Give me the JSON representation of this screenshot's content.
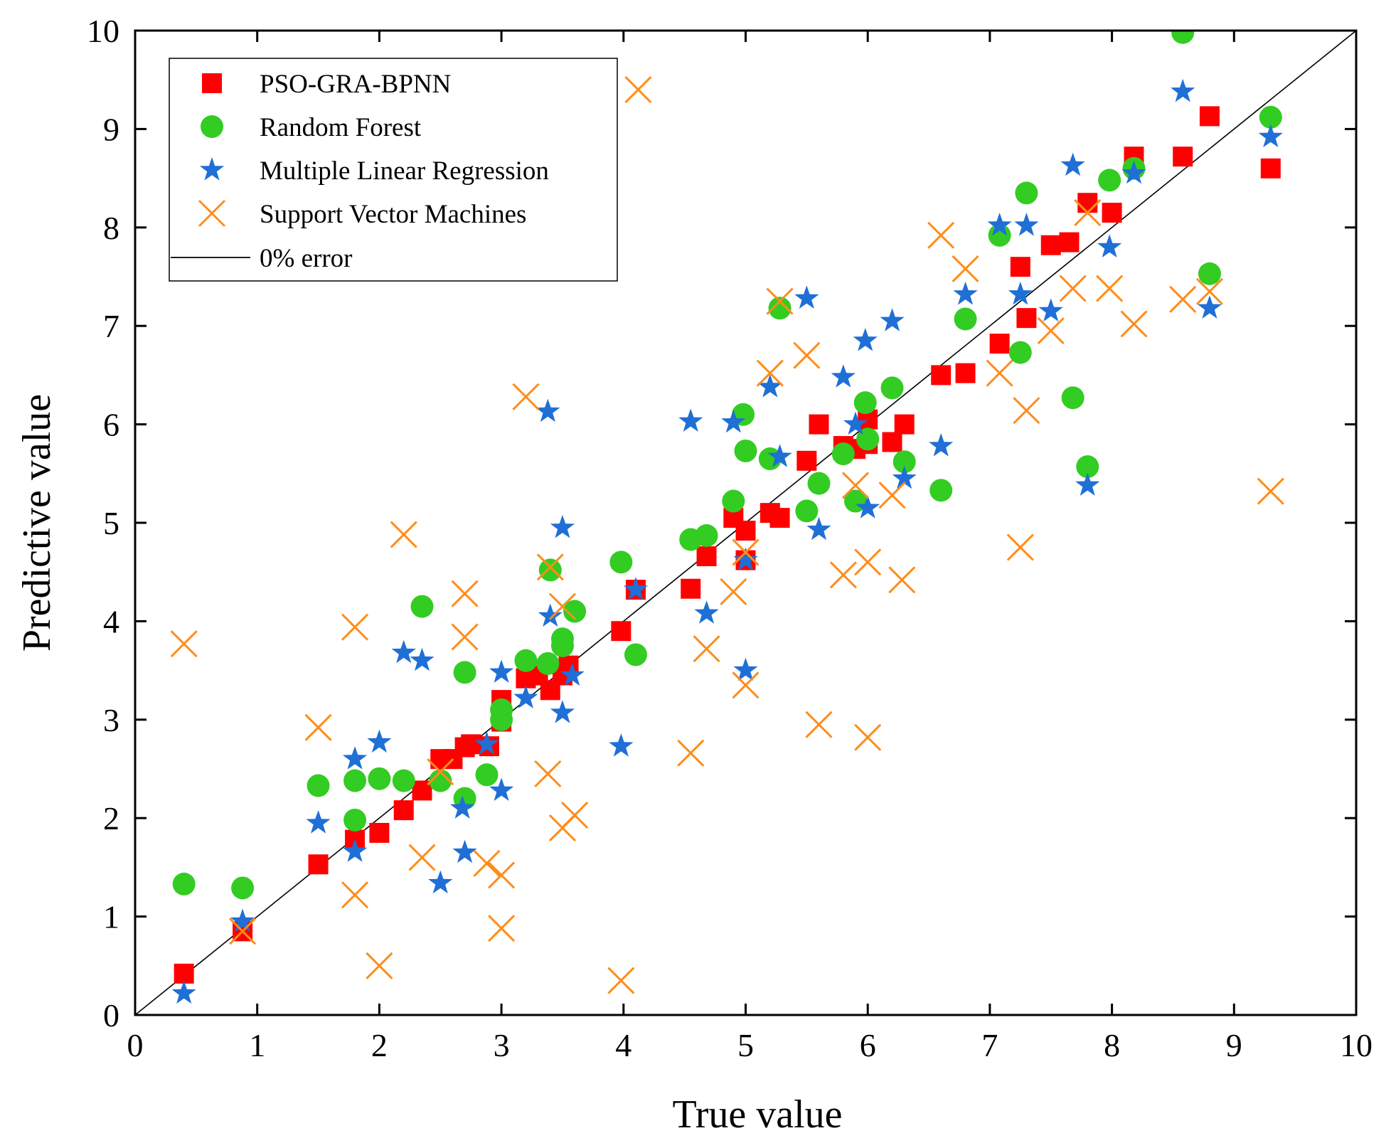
{
  "chart_data": {
    "type": "scatter",
    "title": "",
    "xlabel": "True value",
    "ylabel": "Predictive value",
    "xlim": [
      0,
      10
    ],
    "ylim": [
      0,
      10
    ],
    "xticks": [
      "0",
      "1",
      "2",
      "3",
      "4",
      "5",
      "6",
      "7",
      "8",
      "9",
      "10"
    ],
    "yticks": [
      "0",
      "1",
      "2",
      "3",
      "4",
      "5",
      "6",
      "7",
      "8",
      "9",
      "10"
    ],
    "grid": false,
    "legend_position": "top-left",
    "reference_line": {
      "name": "0% error",
      "x": [
        0,
        10
      ],
      "y": [
        0,
        10
      ],
      "color": "#000000"
    },
    "series": [
      {
        "name": "PSO-GRA-BPNN",
        "marker": "square",
        "color": "#ff0000",
        "points": [
          [
            0.4,
            0.42
          ],
          [
            0.88,
            0.85
          ],
          [
            1.5,
            1.53
          ],
          [
            1.8,
            1.78
          ],
          [
            2.0,
            1.85
          ],
          [
            2.2,
            2.08
          ],
          [
            2.35,
            2.28
          ],
          [
            2.5,
            2.6
          ],
          [
            2.6,
            2.6
          ],
          [
            2.7,
            2.72
          ],
          [
            2.75,
            2.75
          ],
          [
            2.9,
            2.73
          ],
          [
            3.0,
            3.2
          ],
          [
            3.0,
            2.98
          ],
          [
            3.2,
            3.42
          ],
          [
            3.3,
            3.45
          ],
          [
            3.4,
            3.3
          ],
          [
            3.5,
            3.45
          ],
          [
            3.55,
            3.55
          ],
          [
            3.98,
            3.9
          ],
          [
            4.1,
            4.32
          ],
          [
            4.55,
            4.33
          ],
          [
            4.68,
            4.66
          ],
          [
            4.9,
            5.05
          ],
          [
            5.0,
            4.92
          ],
          [
            5.0,
            4.62
          ],
          [
            5.2,
            5.1
          ],
          [
            5.28,
            5.05
          ],
          [
            5.5,
            5.63
          ],
          [
            5.6,
            6.0
          ],
          [
            5.8,
            5.78
          ],
          [
            5.9,
            5.75
          ],
          [
            6.0,
            5.8
          ],
          [
            6.0,
            6.05
          ],
          [
            6.2,
            5.82
          ],
          [
            6.3,
            6.0
          ],
          [
            6.6,
            6.5
          ],
          [
            6.8,
            6.52
          ],
          [
            7.08,
            6.82
          ],
          [
            7.25,
            7.6
          ],
          [
            7.3,
            7.08
          ],
          [
            7.5,
            7.82
          ],
          [
            7.65,
            7.85
          ],
          [
            7.8,
            8.25
          ],
          [
            8.0,
            8.15
          ],
          [
            8.18,
            8.72
          ],
          [
            8.58,
            8.72
          ],
          [
            8.8,
            9.13
          ],
          [
            9.3,
            8.6
          ]
        ]
      },
      {
        "name": "Random Forest",
        "marker": "circle",
        "color": "#33cc22",
        "points": [
          [
            0.4,
            1.33
          ],
          [
            0.88,
            1.29
          ],
          [
            1.5,
            2.33
          ],
          [
            1.8,
            2.38
          ],
          [
            1.8,
            1.98
          ],
          [
            2.0,
            2.4
          ],
          [
            2.2,
            2.38
          ],
          [
            2.35,
            4.15
          ],
          [
            2.5,
            2.38
          ],
          [
            2.7,
            3.48
          ],
          [
            2.7,
            2.2
          ],
          [
            2.88,
            2.44
          ],
          [
            3.0,
            3.0
          ],
          [
            3.0,
            3.1
          ],
          [
            3.2,
            3.6
          ],
          [
            3.38,
            3.57
          ],
          [
            3.4,
            4.52
          ],
          [
            3.5,
            3.82
          ],
          [
            3.5,
            3.75
          ],
          [
            3.6,
            4.1
          ],
          [
            3.98,
            4.6
          ],
          [
            4.1,
            3.66
          ],
          [
            4.55,
            4.83
          ],
          [
            4.68,
            4.87
          ],
          [
            4.9,
            5.22
          ],
          [
            4.98,
            6.1
          ],
          [
            5.0,
            5.73
          ],
          [
            5.2,
            5.65
          ],
          [
            5.28,
            7.18
          ],
          [
            5.5,
            5.12
          ],
          [
            5.6,
            5.4
          ],
          [
            5.8,
            5.7
          ],
          [
            5.9,
            5.22
          ],
          [
            5.98,
            6.22
          ],
          [
            6.0,
            5.85
          ],
          [
            6.2,
            6.37
          ],
          [
            6.3,
            5.62
          ],
          [
            6.6,
            5.33
          ],
          [
            6.8,
            7.07
          ],
          [
            7.08,
            7.92
          ],
          [
            7.25,
            6.73
          ],
          [
            7.3,
            8.35
          ],
          [
            7.68,
            6.27
          ],
          [
            7.8,
            5.57
          ],
          [
            7.98,
            8.48
          ],
          [
            8.18,
            8.6
          ],
          [
            8.58,
            9.98
          ],
          [
            8.8,
            7.53
          ],
          [
            9.3,
            9.12
          ]
        ]
      },
      {
        "name": "Multiple Linear Regression",
        "marker": "star",
        "color": "#1f6fd6",
        "points": [
          [
            0.4,
            0.22
          ],
          [
            0.88,
            0.95
          ],
          [
            1.5,
            1.95
          ],
          [
            1.8,
            2.6
          ],
          [
            1.8,
            1.66
          ],
          [
            2.0,
            2.77
          ],
          [
            2.2,
            3.68
          ],
          [
            2.35,
            3.6
          ],
          [
            2.5,
            1.34
          ],
          [
            2.68,
            2.1
          ],
          [
            2.7,
            1.65
          ],
          [
            2.88,
            2.75
          ],
          [
            3.0,
            3.48
          ],
          [
            3.0,
            2.28
          ],
          [
            3.2,
            3.22
          ],
          [
            3.38,
            6.13
          ],
          [
            3.4,
            4.05
          ],
          [
            3.5,
            4.95
          ],
          [
            3.5,
            3.07
          ],
          [
            3.58,
            3.45
          ],
          [
            3.98,
            2.73
          ],
          [
            4.1,
            4.32
          ],
          [
            4.55,
            6.03
          ],
          [
            4.68,
            4.08
          ],
          [
            4.9,
            6.02
          ],
          [
            5.0,
            3.5
          ],
          [
            5.0,
            4.62
          ],
          [
            5.2,
            6.38
          ],
          [
            5.28,
            5.67
          ],
          [
            5.5,
            7.28
          ],
          [
            5.6,
            4.93
          ],
          [
            5.8,
            6.48
          ],
          [
            5.9,
            6.0
          ],
          [
            5.98,
            6.85
          ],
          [
            6.0,
            5.15
          ],
          [
            6.2,
            7.05
          ],
          [
            6.3,
            5.45
          ],
          [
            6.6,
            5.78
          ],
          [
            6.8,
            7.32
          ],
          [
            7.08,
            8.02
          ],
          [
            7.25,
            7.32
          ],
          [
            7.3,
            8.02
          ],
          [
            7.5,
            7.15
          ],
          [
            7.68,
            8.63
          ],
          [
            7.8,
            5.38
          ],
          [
            7.98,
            7.8
          ],
          [
            8.18,
            8.55
          ],
          [
            8.58,
            9.38
          ],
          [
            8.8,
            7.18
          ],
          [
            9.3,
            8.92
          ]
        ]
      },
      {
        "name": "Support Vector Machines",
        "marker": "x",
        "color": "#ff8c1a",
        "points": [
          [
            0.4,
            3.77
          ],
          [
            0.88,
            0.85
          ],
          [
            1.5,
            2.92
          ],
          [
            1.8,
            3.94
          ],
          [
            1.8,
            1.22
          ],
          [
            2.0,
            0.5
          ],
          [
            2.2,
            4.88
          ],
          [
            2.35,
            1.6
          ],
          [
            2.5,
            2.47
          ],
          [
            2.7,
            4.28
          ],
          [
            2.7,
            3.84
          ],
          [
            2.88,
            1.54
          ],
          [
            3.0,
            1.42
          ],
          [
            3.0,
            0.88
          ],
          [
            3.2,
            6.28
          ],
          [
            3.38,
            2.45
          ],
          [
            3.4,
            4.55
          ],
          [
            3.5,
            4.15
          ],
          [
            3.5,
            1.9
          ],
          [
            3.6,
            2.03
          ],
          [
            3.98,
            0.35
          ],
          [
            4.12,
            9.4
          ],
          [
            4.55,
            2.66
          ],
          [
            4.68,
            3.72
          ],
          [
            4.9,
            4.3
          ],
          [
            5.0,
            3.35
          ],
          [
            5.0,
            4.7
          ],
          [
            5.2,
            6.52
          ],
          [
            5.28,
            7.25
          ],
          [
            5.5,
            6.7
          ],
          [
            5.6,
            2.95
          ],
          [
            5.8,
            4.47
          ],
          [
            5.9,
            5.38
          ],
          [
            6.0,
            4.6
          ],
          [
            6.0,
            2.82
          ],
          [
            6.2,
            5.28
          ],
          [
            6.28,
            4.42
          ],
          [
            6.6,
            7.92
          ],
          [
            6.8,
            7.58
          ],
          [
            7.08,
            6.52
          ],
          [
            7.25,
            4.75
          ],
          [
            7.3,
            6.14
          ],
          [
            7.5,
            6.95
          ],
          [
            7.68,
            7.38
          ],
          [
            7.8,
            8.15
          ],
          [
            7.98,
            7.38
          ],
          [
            8.18,
            7.02
          ],
          [
            8.58,
            7.27
          ],
          [
            8.8,
            7.35
          ],
          [
            9.3,
            5.32
          ]
        ]
      }
    ]
  }
}
